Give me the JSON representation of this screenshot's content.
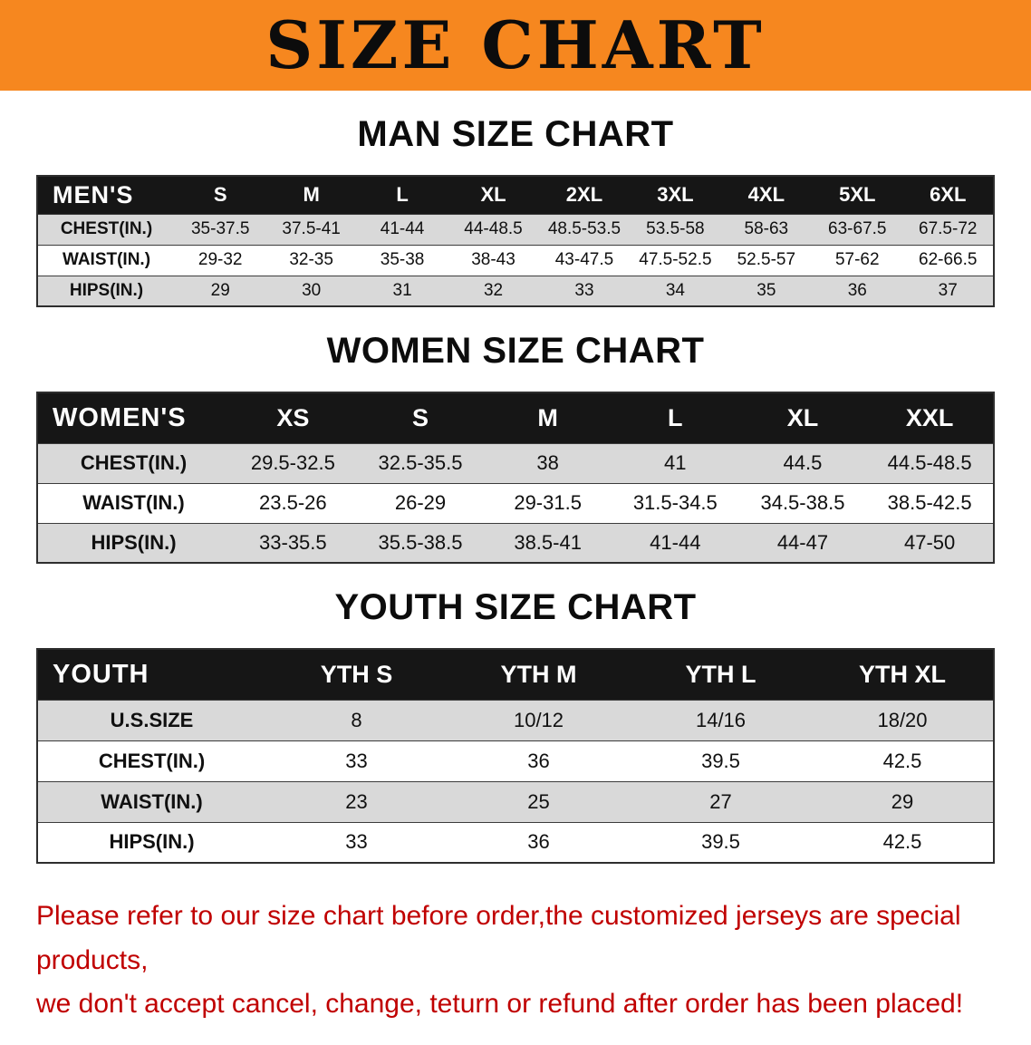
{
  "banner": {
    "title": "SIZE CHART"
  },
  "men": {
    "heading": "MAN SIZE CHART",
    "table": {
      "header_label": "MEN'S",
      "columns": [
        "S",
        "M",
        "L",
        "XL",
        "2XL",
        "3XL",
        "4XL",
        "5XL",
        "6XL"
      ],
      "rows": [
        {
          "label": "CHEST(IN.)",
          "values": [
            "35-37.5",
            "37.5-41",
            "41-44",
            "44-48.5",
            "48.5-53.5",
            "53.5-58",
            "58-63",
            "63-67.5",
            "67.5-72"
          ]
        },
        {
          "label": "WAIST(IN.)",
          "values": [
            "29-32",
            "32-35",
            "35-38",
            "38-43",
            "43-47.5",
            "47.5-52.5",
            "52.5-57",
            "57-62",
            "62-66.5"
          ]
        },
        {
          "label": "HIPS(IN.)",
          "values": [
            "29",
            "30",
            "31",
            "32",
            "33",
            "34",
            "35",
            "36",
            "37"
          ]
        }
      ]
    }
  },
  "women": {
    "heading": "WOMEN SIZE CHART",
    "table": {
      "header_label": "WOMEN'S",
      "columns": [
        "XS",
        "S",
        "M",
        "L",
        "XL",
        "XXL"
      ],
      "rows": [
        {
          "label": "CHEST(IN.)",
          "values": [
            "29.5-32.5",
            "32.5-35.5",
            "38",
            "41",
            "44.5",
            "44.5-48.5"
          ]
        },
        {
          "label": "WAIST(IN.)",
          "values": [
            "23.5-26",
            "26-29",
            "29-31.5",
            "31.5-34.5",
            "34.5-38.5",
            "38.5-42.5"
          ]
        },
        {
          "label": "HIPS(IN.)",
          "values": [
            "33-35.5",
            "35.5-38.5",
            "38.5-41",
            "41-44",
            "44-47",
            "47-50"
          ]
        }
      ]
    }
  },
  "youth": {
    "heading": "YOUTH SIZE CHART",
    "table": {
      "header_label": "YOUTH",
      "columns": [
        "YTH S",
        "YTH M",
        "YTH L",
        "YTH XL"
      ],
      "rows": [
        {
          "label": "U.S.SIZE",
          "values": [
            "8",
            "10/12",
            "14/16",
            "18/20"
          ]
        },
        {
          "label": "CHEST(IN.)",
          "values": [
            "33",
            "36",
            "39.5",
            "42.5"
          ]
        },
        {
          "label": "WAIST(IN.)",
          "values": [
            "23",
            "25",
            "27",
            "29"
          ]
        },
        {
          "label": "HIPS(IN.)",
          "values": [
            "33",
            "36",
            "39.5",
            "42.5"
          ]
        }
      ]
    }
  },
  "footer": {
    "line1": "Please refer to our size chart before order,the customized jerseys are special products,",
    "line2": "we don't accept cancel, change, teturn or refund after order has been placed!"
  },
  "colors": {
    "banner_bg": "#F6871F",
    "header_bg": "#161616",
    "row_alt": "#D9D9D9",
    "notice_text": "#C00000"
  }
}
